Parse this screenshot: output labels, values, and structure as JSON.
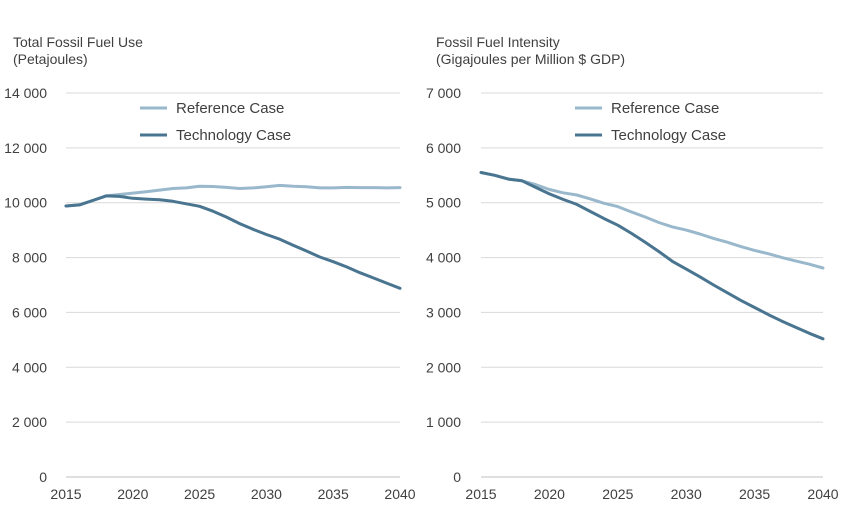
{
  "colors": {
    "reference": "#9ab8cc",
    "technology": "#4a7590",
    "grid": "#d9d9d9",
    "text": "#404040"
  },
  "chart_data": [
    {
      "type": "line",
      "title": "Total Fossil Fuel Use",
      "subtitle": "(Petajoules)",
      "xlim": [
        2015,
        2040
      ],
      "ylim": [
        0,
        14000
      ],
      "xticks": [
        2015,
        2020,
        2025,
        2030,
        2035,
        2040
      ],
      "xtick_labels": [
        "2015",
        "2020",
        "2025",
        "2030",
        "2035",
        "2040"
      ],
      "yticks": [
        0,
        2000,
        4000,
        6000,
        8000,
        10000,
        12000,
        14000
      ],
      "ytick_labels": [
        "0",
        "2 000",
        "4 000",
        "6 000",
        "8 000",
        "10 000",
        "12 000",
        "14 000"
      ],
      "grid": true,
      "legend": "top-center",
      "x": [
        2015,
        2016,
        2017,
        2018,
        2019,
        2020,
        2021,
        2022,
        2023,
        2024,
        2025,
        2026,
        2027,
        2028,
        2029,
        2030,
        2031,
        2032,
        2033,
        2034,
        2035,
        2036,
        2037,
        2038,
        2039,
        2040
      ],
      "series": [
        {
          "name": "Reference Case",
          "color_key": "reference",
          "values": [
            9880,
            9920,
            10080,
            10250,
            10300,
            10350,
            10400,
            10460,
            10520,
            10540,
            10600,
            10590,
            10560,
            10520,
            10540,
            10580,
            10630,
            10600,
            10580,
            10540,
            10540,
            10560,
            10550,
            10550,
            10540,
            10550
          ]
        },
        {
          "name": "Technology Case",
          "color_key": "technology",
          "values": [
            9880,
            9920,
            10080,
            10250,
            10230,
            10160,
            10130,
            10110,
            10050,
            9960,
            9870,
            9690,
            9480,
            9240,
            9030,
            8840,
            8670,
            8450,
            8240,
            8020,
            7850,
            7660,
            7450,
            7260,
            7070,
            6880
          ]
        }
      ]
    },
    {
      "type": "line",
      "title": "Fossil Fuel Intensity",
      "subtitle": "(Gigajoules per Million $ GDP)",
      "xlim": [
        2015,
        2040
      ],
      "ylim": [
        0,
        7000
      ],
      "xticks": [
        2015,
        2020,
        2025,
        2030,
        2035,
        2040
      ],
      "xtick_labels": [
        "2015",
        "2020",
        "2025",
        "2030",
        "2035",
        "2040"
      ],
      "yticks": [
        0,
        1000,
        2000,
        3000,
        4000,
        5000,
        6000,
        7000
      ],
      "ytick_labels": [
        "0",
        "1 000",
        "2 000",
        "3 000",
        "4 000",
        "5 000",
        "6 000",
        "7 000"
      ],
      "grid": true,
      "legend": "top-center",
      "x": [
        2015,
        2016,
        2017,
        2018,
        2019,
        2020,
        2021,
        2022,
        2023,
        2024,
        2025,
        2026,
        2027,
        2028,
        2029,
        2030,
        2031,
        2032,
        2033,
        2034,
        2035,
        2036,
        2037,
        2038,
        2039,
        2040
      ],
      "series": [
        {
          "name": "Reference Case",
          "color_key": "reference",
          "values": [
            5550,
            5500,
            5430,
            5400,
            5330,
            5240,
            5180,
            5140,
            5070,
            4990,
            4930,
            4830,
            4740,
            4640,
            4560,
            4500,
            4430,
            4350,
            4280,
            4200,
            4130,
            4070,
            4000,
            3940,
            3880,
            3810
          ]
        },
        {
          "name": "Technology Case",
          "color_key": "technology",
          "values": [
            5550,
            5500,
            5430,
            5400,
            5280,
            5160,
            5060,
            4970,
            4840,
            4710,
            4590,
            4440,
            4280,
            4110,
            3930,
            3790,
            3650,
            3500,
            3360,
            3220,
            3090,
            2960,
            2840,
            2730,
            2620,
            2520
          ]
        }
      ]
    }
  ]
}
